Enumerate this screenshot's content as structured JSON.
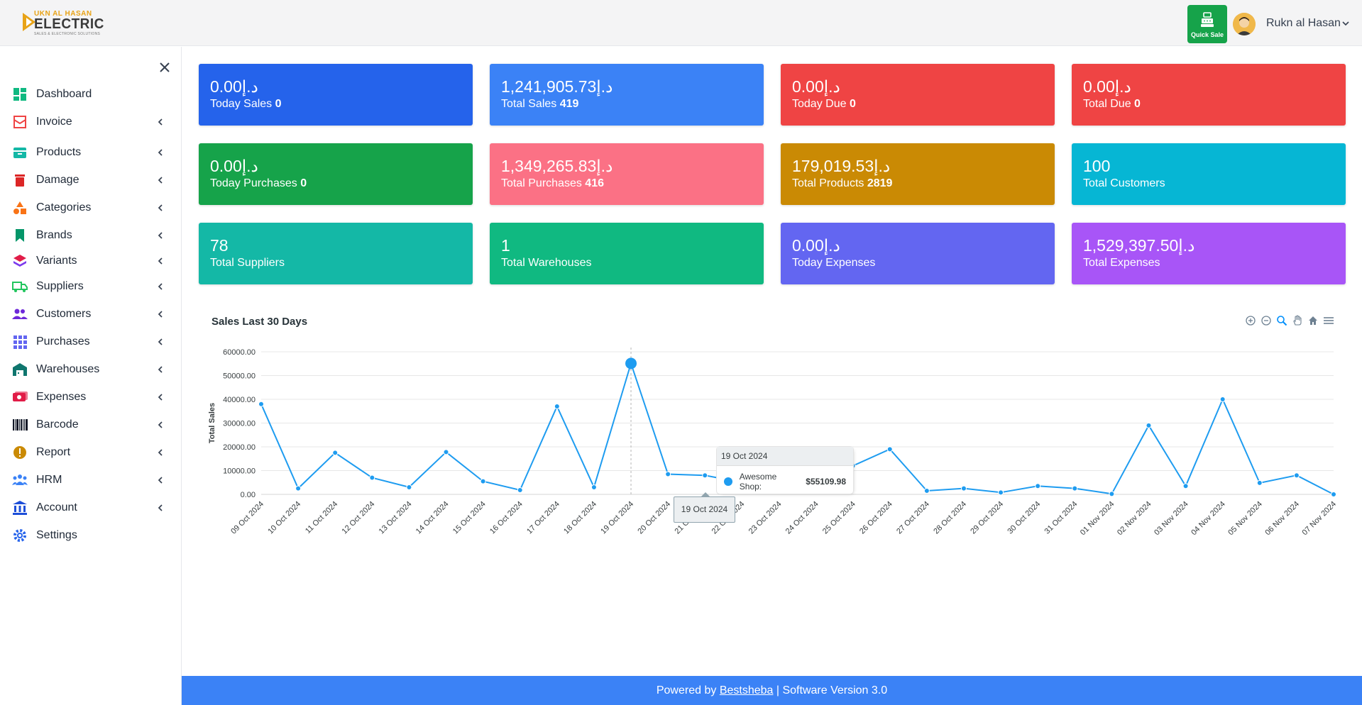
{
  "header": {
    "logo_top": "UKN AL HASAN",
    "logo_main": "ELECTRIC",
    "logo_sub": "SALES & ELECTRONIC SOLUTIONS",
    "quick_sale_label": "Quick Sale",
    "username": "Rukn al Hasan"
  },
  "sidebar": {
    "items": [
      {
        "label": "Dashboard",
        "icon": "dashboard-icon",
        "color": "#10b981",
        "chevron": false
      },
      {
        "label": "Invoice",
        "icon": "invoice-icon",
        "color": "#ef4444",
        "chevron": true
      },
      {
        "label": "Products",
        "icon": "products-icon",
        "color": "#14b8a6",
        "chevron": true
      },
      {
        "label": "Damage",
        "icon": "trash-icon",
        "color": "#dc2626",
        "chevron": true
      },
      {
        "label": "Categories",
        "icon": "shapes-icon",
        "color": "#f97316",
        "chevron": true
      },
      {
        "label": "Brands",
        "icon": "bookmark-icon",
        "color": "#059669",
        "chevron": true
      },
      {
        "label": "Variants",
        "icon": "layers-icon",
        "color": "#e11d48",
        "chevron": true
      },
      {
        "label": "Suppliers",
        "icon": "truck-icon",
        "color": "#22c55e",
        "chevron": true
      },
      {
        "label": "Customers",
        "icon": "users-icon",
        "color": "#6d28d9",
        "chevron": true
      },
      {
        "label": "Purchases",
        "icon": "grid-icon",
        "color": "#6366f1",
        "chevron": true
      },
      {
        "label": "Warehouses",
        "icon": "warehouse-icon",
        "color": "#0f766e",
        "chevron": true
      },
      {
        "label": "Expenses",
        "icon": "money-icon",
        "color": "#e11d48",
        "chevron": true
      },
      {
        "label": "Barcode",
        "icon": "barcode-icon",
        "color": "#111827",
        "chevron": true
      },
      {
        "label": "Report",
        "icon": "alert-icon",
        "color": "#ca8a04",
        "chevron": true
      },
      {
        "label": "HRM",
        "icon": "team-icon",
        "color": "#3b82f6",
        "chevron": true
      },
      {
        "label": "Account",
        "icon": "bank-icon",
        "color": "#1d4ed8",
        "chevron": true
      },
      {
        "label": "Settings",
        "icon": "gear-icon",
        "color": "#2563eb",
        "chevron": false
      }
    ]
  },
  "cards": [
    {
      "value": "0.00د.إ",
      "label": "Today Sales",
      "count": "0",
      "color": "#2563eb"
    },
    {
      "value": "1,241,905.73د.إ",
      "label": "Total Sales",
      "count": "419",
      "color": "#3b82f6"
    },
    {
      "value": "0.00د.إ",
      "label": "Today Due",
      "count": "0",
      "color": "#ef4444"
    },
    {
      "value": "0.00د.إ",
      "label": "Total Due",
      "count": "0",
      "color": "#ef4444"
    },
    {
      "value": "0.00د.إ",
      "label": "Today Purchases",
      "count": "0",
      "color": "#16a34a"
    },
    {
      "value": "1,349,265.83د.إ",
      "label": "Total Purchases",
      "count": "416",
      "color": "#fb7185"
    },
    {
      "value": "179,019.53د.إ",
      "label": "Total Products",
      "count": "2819",
      "color": "#ca8a04"
    },
    {
      "value": "100",
      "label": "Total Customers",
      "count": "",
      "color": "#06b6d4"
    },
    {
      "value": "78",
      "label": "Total Suppliers",
      "count": "",
      "color": "#14b8a6"
    },
    {
      "value": "1",
      "label": "Total Warehouses",
      "count": "",
      "color": "#10b981"
    },
    {
      "value": "0.00د.إ",
      "label": "Today Expenses",
      "count": "",
      "color": "#6366f1"
    },
    {
      "value": "1,529,397.50د.إ",
      "label": "Total Expenses",
      "count": "",
      "color": "#a855f7"
    }
  ],
  "chart_data": {
    "type": "line",
    "title": "Sales Last 30 Days",
    "xlabel": "",
    "ylabel": "Total Sales",
    "ylim": [
      0,
      60000
    ],
    "yticks": [
      "0.00",
      "10000.00",
      "20000.00",
      "30000.00",
      "40000.00",
      "50000.00",
      "60000.00"
    ],
    "categories": [
      "09 Oct 2024",
      "10 Oct 2024",
      "11 Oct 2024",
      "12 Oct 2024",
      "13 Oct 2024",
      "14 Oct 2024",
      "15 Oct 2024",
      "16 Oct 2024",
      "17 Oct 2024",
      "18 Oct 2024",
      "19 Oct 2024",
      "20 Oct 2024",
      "21 Oct 2024",
      "22 Oct 2024",
      "23 Oct 2024",
      "24 Oct 2024",
      "25 Oct 2024",
      "26 Oct 2024",
      "27 Oct 2024",
      "28 Oct 2024",
      "29 Oct 2024",
      "30 Oct 2024",
      "31 Oct 2024",
      "01 Nov 2024",
      "02 Nov 2024",
      "03 Nov 2024",
      "04 Nov 2024",
      "05 Nov 2024",
      "06 Nov 2024",
      "07 Nov 2024"
    ],
    "series": [
      {
        "name": "Awesome Shop",
        "color": "#1e9cf0",
        "values": [
          38000,
          2500,
          17500,
          7000,
          3000,
          17800,
          5500,
          1800,
          37000,
          3000,
          55109.98,
          8500,
          8000,
          5000,
          7500,
          9000,
          12000,
          19000,
          1500,
          2500,
          800,
          3500,
          2500,
          200,
          29000,
          3500,
          40000,
          4800,
          8000,
          0
        ]
      }
    ],
    "grid": true,
    "tooltip": {
      "title": "19 Oct 2024",
      "series": "Awesome Shop:",
      "value": "$55109.98",
      "x_label": "19 Oct 2024"
    }
  },
  "footer": {
    "prefix": "Powered by",
    "link": "Bestsheba",
    "suffix": "| Software Version 3.0"
  }
}
